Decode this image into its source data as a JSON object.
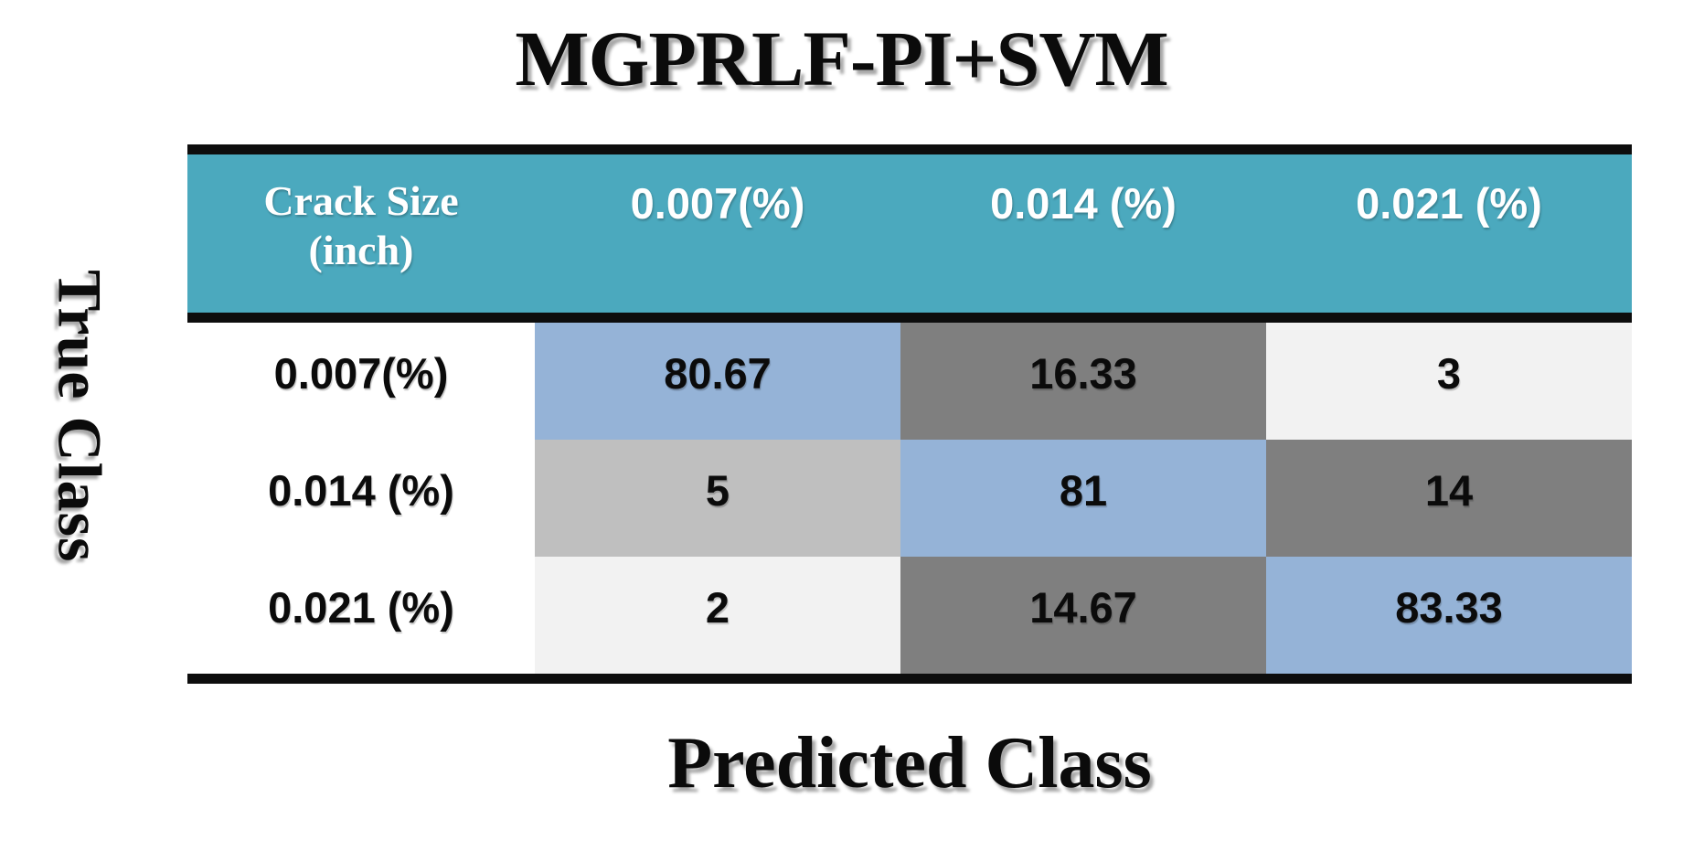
{
  "title": "MGPRLF-PI+SVM",
  "y_axis_label": "True Class",
  "x_axis_label": "Predicted Class",
  "colors": {
    "header_teal": "#4BA9BE",
    "diagonal_blue": "#95B3D7",
    "dark_gray": "#7F7F7F",
    "mid_gray": "#BFBFBF",
    "light_gray": "#F2F2F2",
    "rule_black": "#0D0D0D",
    "header_text": "#FFFFFF"
  },
  "table": {
    "corner_header": {
      "line1": "Crack Size",
      "line2": "(inch)"
    },
    "col_headers": [
      "0.007(%)",
      "0.014 (%)",
      "0.021 (%)"
    ],
    "rows": [
      {
        "label": "0.007(%)",
        "cells": [
          {
            "value": "80.67",
            "bg": "#95B3D7"
          },
          {
            "value": "16.33",
            "bg": "#7F7F7F"
          },
          {
            "value": "3",
            "bg": "#F2F2F2"
          }
        ]
      },
      {
        "label": "0.014 (%)",
        "cells": [
          {
            "value": "5",
            "bg": "#BFBFBF"
          },
          {
            "value": "81",
            "bg": "#95B3D7"
          },
          {
            "value": "14",
            "bg": "#7F7F7F"
          }
        ]
      },
      {
        "label": "0.021 (%)",
        "cells": [
          {
            "value": "2",
            "bg": "#F2F2F2"
          },
          {
            "value": "14.67",
            "bg": "#7F7F7F"
          },
          {
            "value": "83.33",
            "bg": "#95B3D7"
          }
        ]
      }
    ]
  },
  "chart_data": {
    "type": "heatmap",
    "title": "MGPRLF-PI+SVM",
    "xlabel": "Predicted Class",
    "ylabel": "True Class",
    "corner_label": "Crack Size (inch)",
    "x_categories": [
      "0.007(%)",
      "0.014 (%)",
      "0.021 (%)"
    ],
    "y_categories": [
      "0.007(%)",
      "0.014 (%)",
      "0.021 (%)"
    ],
    "values": [
      [
        80.67,
        16.33,
        3
      ],
      [
        5,
        81,
        14
      ],
      [
        2,
        14.67,
        83.33
      ]
    ],
    "legend_position": "none",
    "grid": false,
    "cell_color_semantics": {
      "diagonal": "#95B3D7",
      "high_confusion": "#7F7F7F",
      "mid_confusion": "#BFBFBF",
      "low_confusion": "#F2F2F2"
    }
  }
}
